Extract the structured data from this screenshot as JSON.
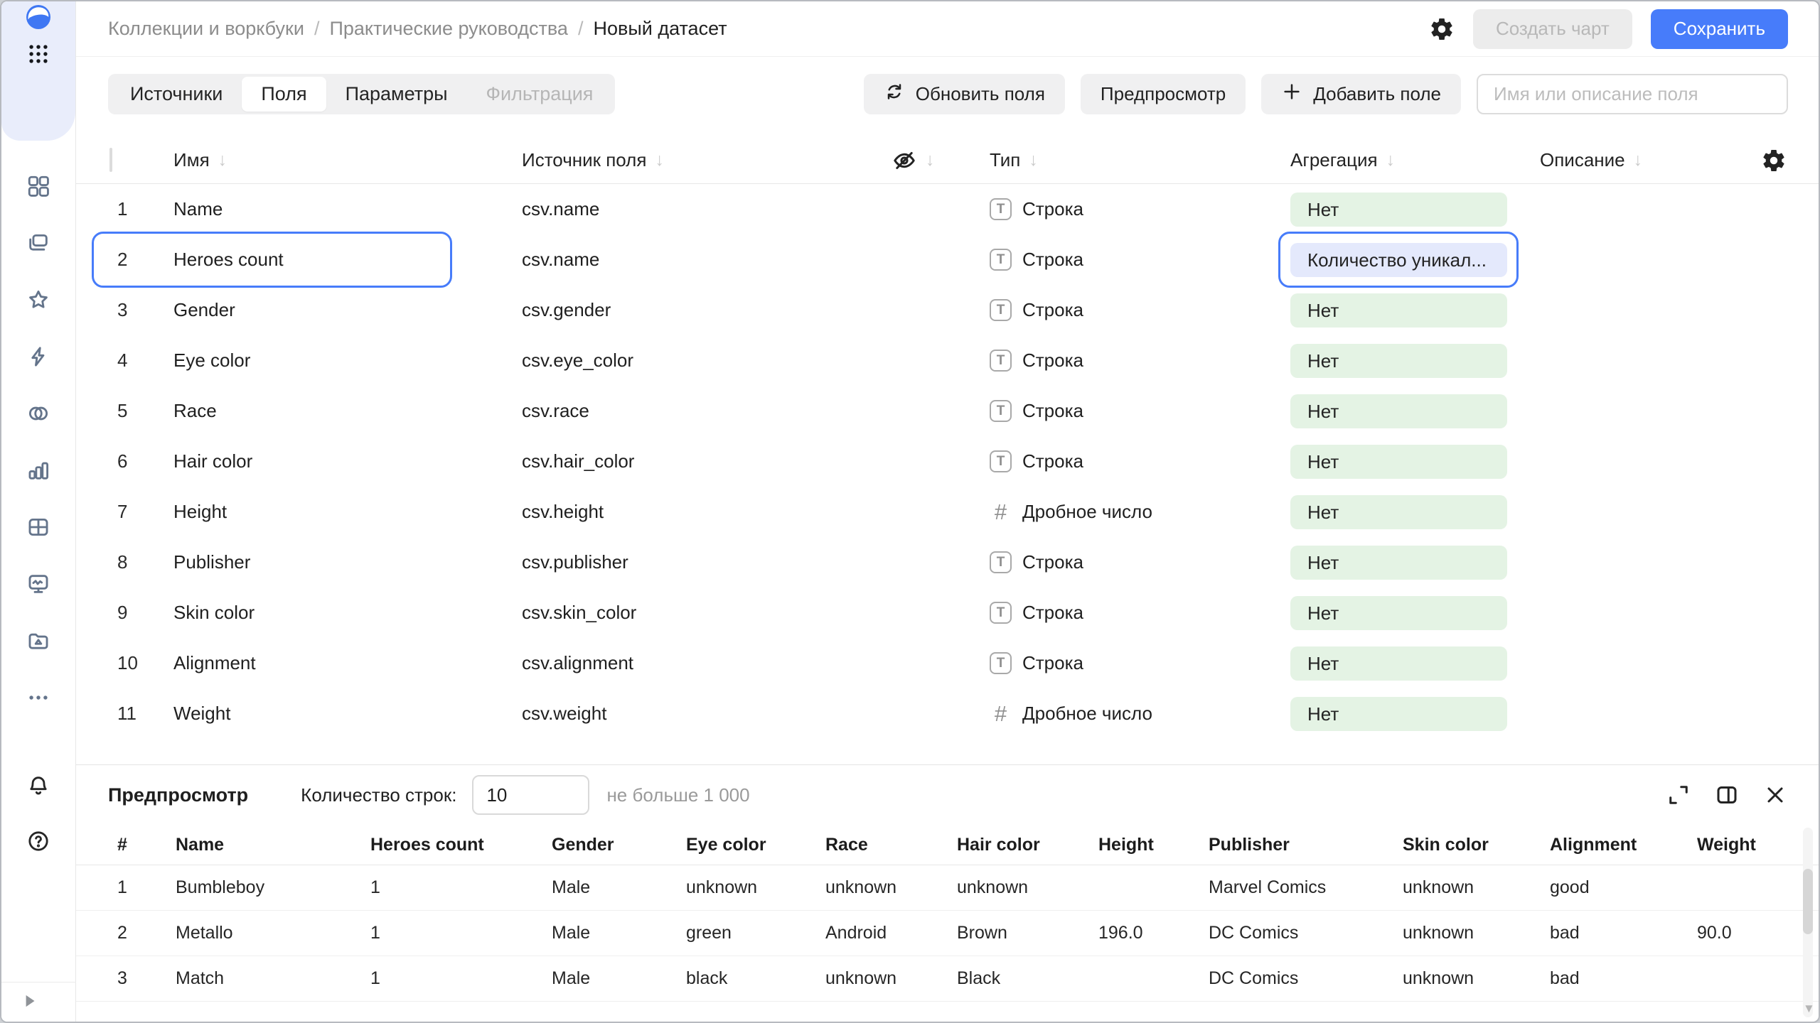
{
  "breadcrumb": {
    "separator": "/",
    "items": [
      "Коллекции и воркбуки",
      "Практические руководства",
      "Новый датасет"
    ]
  },
  "topbar": {
    "create_chart_label": "Создать чарт",
    "save_label": "Сохранить"
  },
  "tabs": [
    {
      "label": "Источники",
      "state": "default"
    },
    {
      "label": "Поля",
      "state": "active"
    },
    {
      "label": "Параметры",
      "state": "default"
    },
    {
      "label": "Фильтрация",
      "state": "disabled"
    }
  ],
  "toolbar": {
    "refresh_fields_label": "Обновить поля",
    "preview_label": "Предпросмотр",
    "add_field_label": "Добавить поле",
    "search_placeholder": "Имя или описание поля"
  },
  "fields_table": {
    "header": {
      "name": "Имя",
      "source": "Источник поля",
      "type": "Тип",
      "aggregation": "Агрегация",
      "description": "Описание"
    },
    "rows": [
      {
        "num": "1",
        "name": "Name",
        "source": "csv.name",
        "type_label": "Строка",
        "type_kind": "string",
        "aggregation": "Нет",
        "selected": false
      },
      {
        "num": "2",
        "name": "Heroes count",
        "source": "csv.name",
        "type_label": "Строка",
        "type_kind": "string",
        "aggregation": "Количество уникал...",
        "selected": true
      },
      {
        "num": "3",
        "name": "Gender",
        "source": "csv.gender",
        "type_label": "Строка",
        "type_kind": "string",
        "aggregation": "Нет",
        "selected": false
      },
      {
        "num": "4",
        "name": "Eye color",
        "source": "csv.eye_color",
        "type_label": "Строка",
        "type_kind": "string",
        "aggregation": "Нет",
        "selected": false
      },
      {
        "num": "5",
        "name": "Race",
        "source": "csv.race",
        "type_label": "Строка",
        "type_kind": "string",
        "aggregation": "Нет",
        "selected": false
      },
      {
        "num": "6",
        "name": "Hair color",
        "source": "csv.hair_color",
        "type_label": "Строка",
        "type_kind": "string",
        "aggregation": "Нет",
        "selected": false
      },
      {
        "num": "7",
        "name": "Height",
        "source": "csv.height",
        "type_label": "Дробное число",
        "type_kind": "number",
        "aggregation": "Нет",
        "selected": false
      },
      {
        "num": "8",
        "name": "Publisher",
        "source": "csv.publisher",
        "type_label": "Строка",
        "type_kind": "string",
        "aggregation": "Нет",
        "selected": false
      },
      {
        "num": "9",
        "name": "Skin color",
        "source": "csv.skin_color",
        "type_label": "Строка",
        "type_kind": "string",
        "aggregation": "Нет",
        "selected": false
      },
      {
        "num": "10",
        "name": "Alignment",
        "source": "csv.alignment",
        "type_label": "Строка",
        "type_kind": "string",
        "aggregation": "Нет",
        "selected": false
      },
      {
        "num": "11",
        "name": "Weight",
        "source": "csv.weight",
        "type_label": "Дробное число",
        "type_kind": "number",
        "aggregation": "Нет",
        "selected": false
      }
    ]
  },
  "preview": {
    "title": "Предпросмотр",
    "row_count_label": "Количество строк:",
    "row_count_value": "10",
    "row_count_hint": "не больше 1 000",
    "columns": [
      "#",
      "Name",
      "Heroes count",
      "Gender",
      "Eye color",
      "Race",
      "Hair color",
      "Height",
      "Publisher",
      "Skin color",
      "Alignment",
      "Weight"
    ],
    "rows": [
      [
        "1",
        "Bumbleboy",
        "1",
        "Male",
        "unknown",
        "unknown",
        "unknown",
        "",
        "Marvel Comics",
        "unknown",
        "good",
        ""
      ],
      [
        "2",
        "Metallo",
        "1",
        "Male",
        "green",
        "Android",
        "Brown",
        "196.0",
        "DC Comics",
        "unknown",
        "bad",
        "90.0"
      ],
      [
        "3",
        "Match",
        "1",
        "Male",
        "black",
        "unknown",
        "Black",
        "",
        "DC Comics",
        "unknown",
        "bad",
        ""
      ]
    ]
  },
  "sidebar": {
    "nav_icons": [
      "collections",
      "workbooks",
      "favorites",
      "quick-actions",
      "connections",
      "charts",
      "datasets",
      "dashboards",
      "storage",
      "more"
    ],
    "bottom_icons": [
      "notifications",
      "help",
      "settings"
    ]
  },
  "colors": {
    "accent_blue": "#477cfa",
    "pill_green_bg": "#e4f3e4",
    "pill_blue_bg": "#e4e9fc",
    "sidebar_top_bg": "#e9edfb"
  }
}
